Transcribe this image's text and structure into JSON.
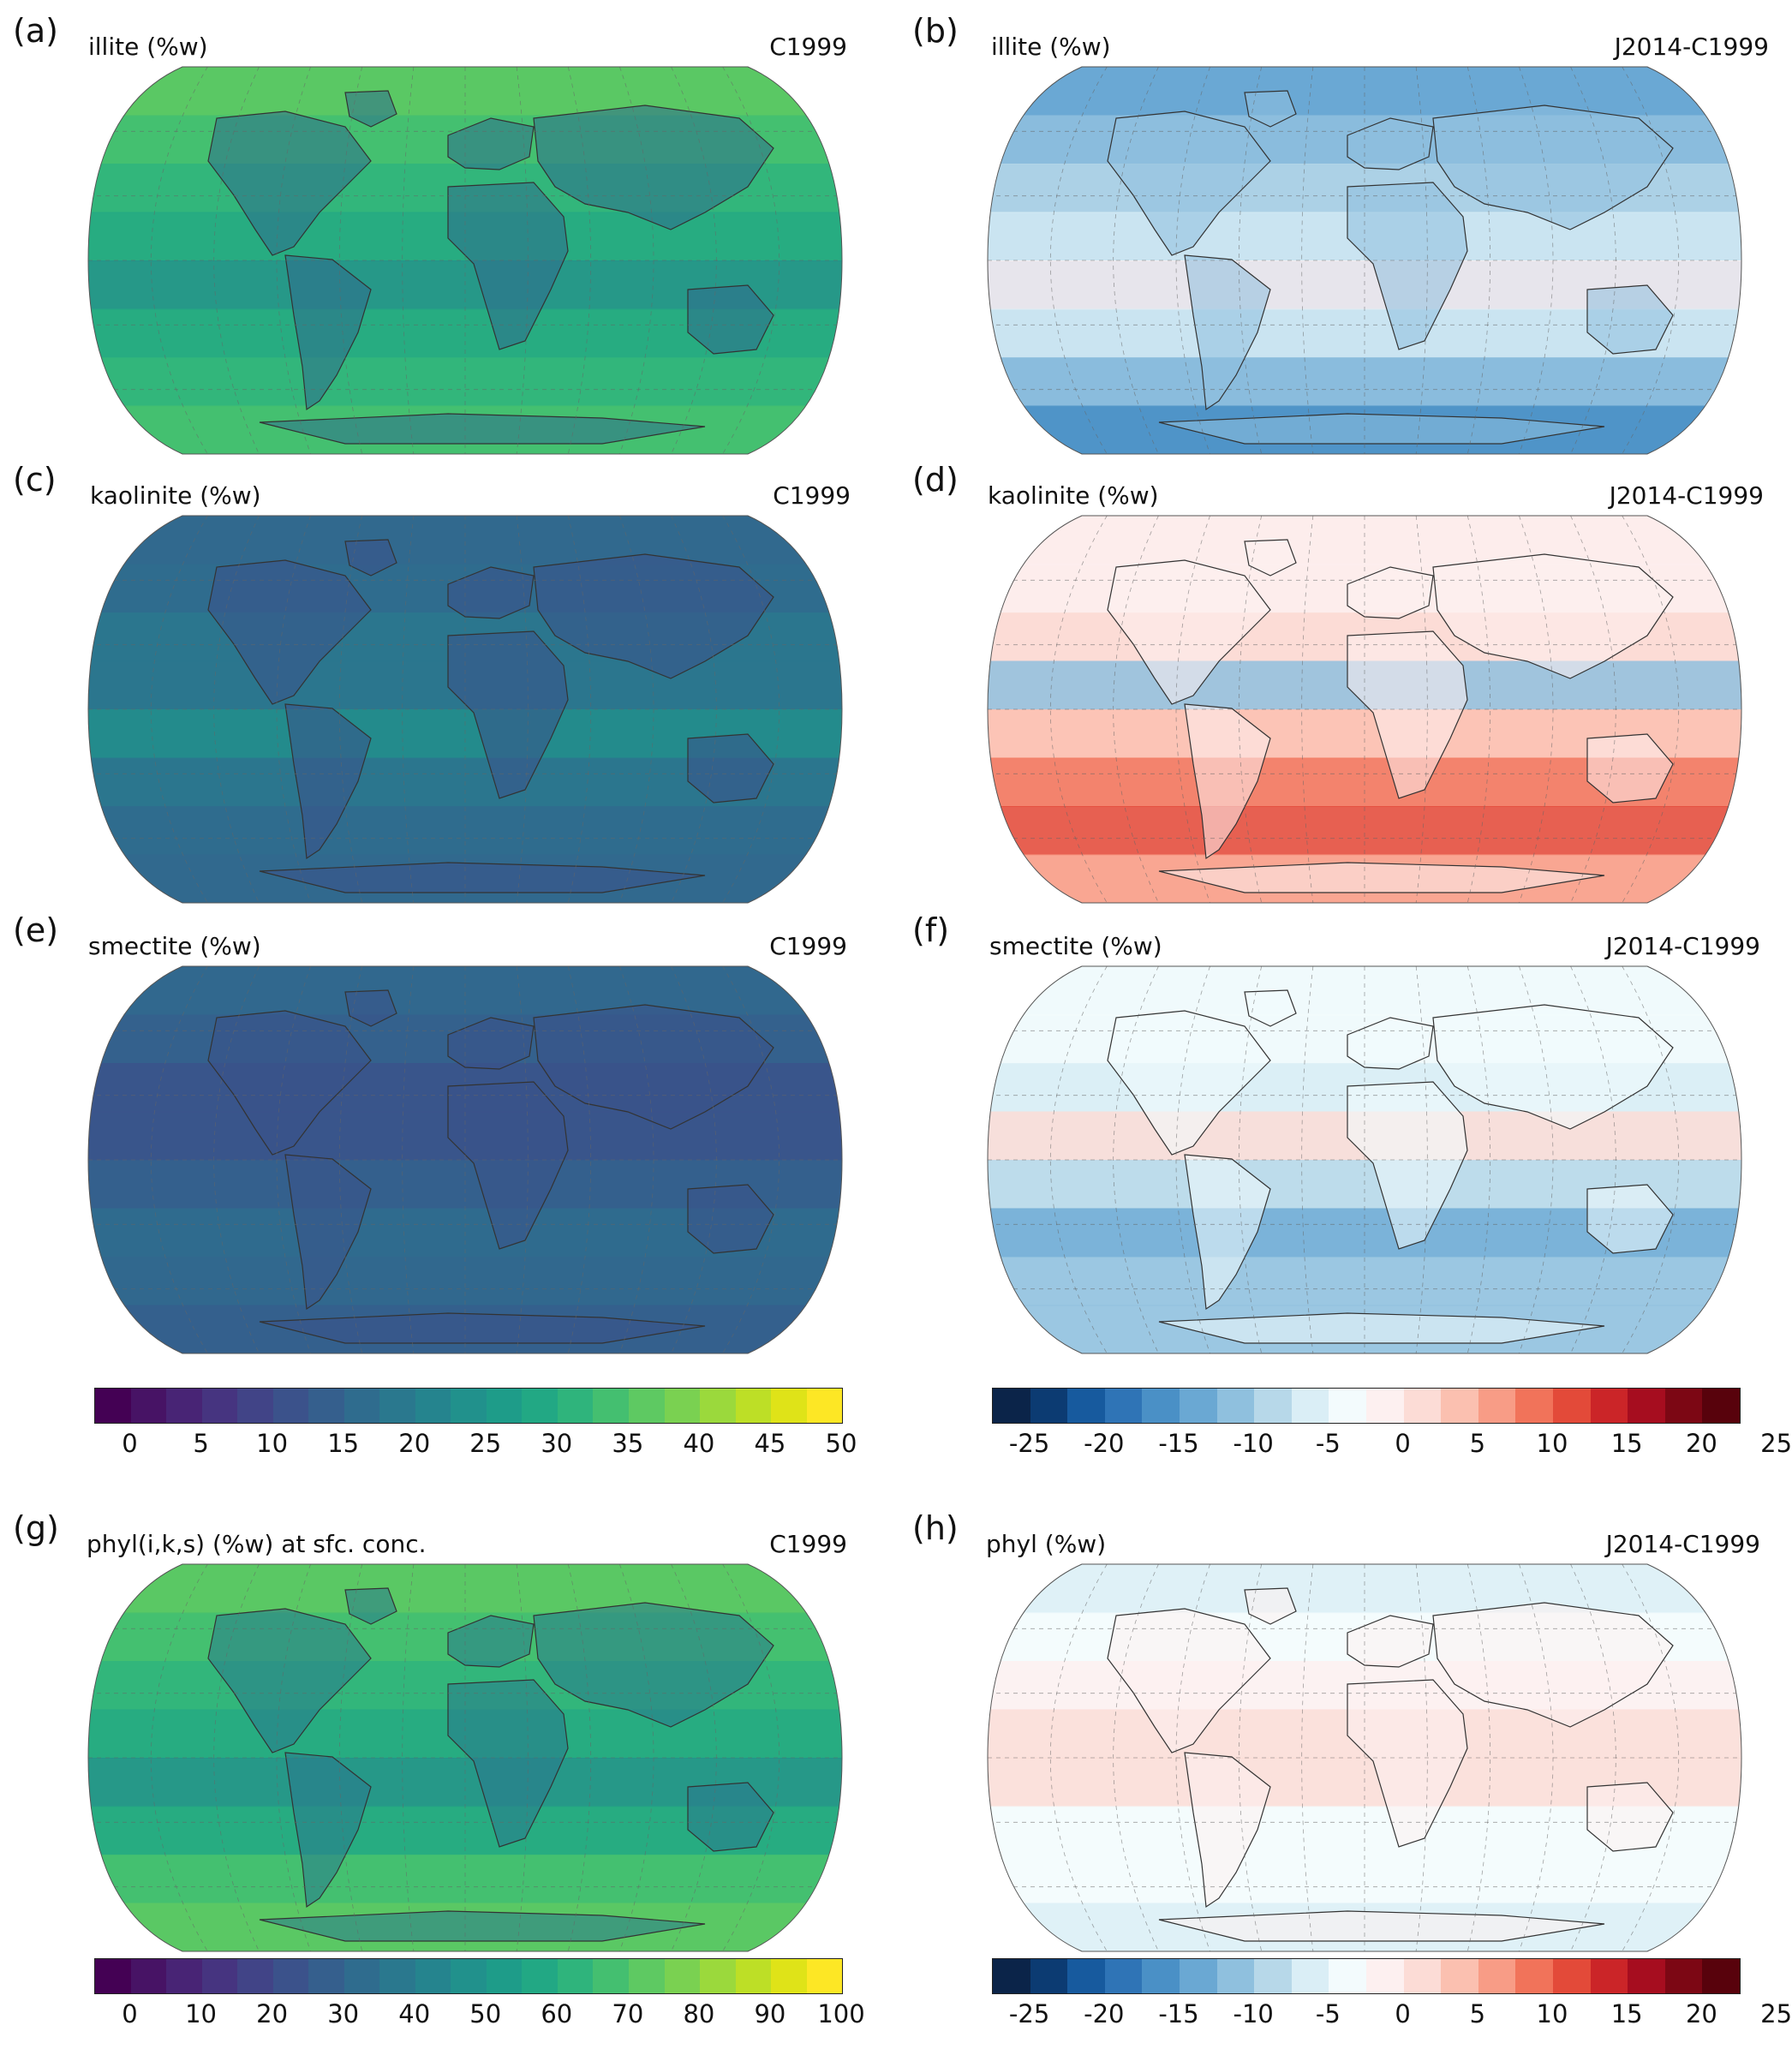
{
  "panels": [
    {
      "id": "a",
      "letter": "(a)",
      "var": "illite (%w)",
      "exp": "C1999"
    },
    {
      "id": "b",
      "letter": "(b)",
      "var": "illite (%w)",
      "exp": "J2014-C1999"
    },
    {
      "id": "c",
      "letter": "(c)",
      "var": "kaolinite (%w)",
      "exp": "C1999"
    },
    {
      "id": "d",
      "letter": "(d)",
      "var": "kaolinite (%w)",
      "exp": "J2014-C1999"
    },
    {
      "id": "e",
      "letter": "(e)",
      "var": "smectite (%w)",
      "exp": "C1999"
    },
    {
      "id": "f",
      "letter": "(f)",
      "var": "smectite (%w)",
      "exp": "J2014-C1999"
    },
    {
      "id": "g",
      "letter": "(g)",
      "var": "phyl(i,k,s) (%w) at sfc. conc.",
      "exp": "C1999"
    },
    {
      "id": "h",
      "letter": "(h)",
      "var": "phyl (%w)",
      "exp": "J2014-C1999"
    }
  ],
  "colorbars": [
    {
      "id": "abs-1",
      "ticks": [
        "0",
        "5",
        "10",
        "15",
        "20",
        "25",
        "30",
        "35",
        "40",
        "45",
        "50"
      ]
    },
    {
      "id": "diff-1",
      "ticks": [
        "-25",
        "-20",
        "-15",
        "-10",
        "-5",
        "0",
        "5",
        "10",
        "15",
        "20",
        "25"
      ]
    },
    {
      "id": "abs-2",
      "ticks": [
        "0",
        "10",
        "20",
        "30",
        "40",
        "50",
        "60",
        "70",
        "80",
        "90",
        "100"
      ]
    },
    {
      "id": "diff-2",
      "ticks": [
        "-25",
        "-20",
        "-15",
        "-10",
        "-5",
        "0",
        "5",
        "10",
        "15",
        "20",
        "25"
      ]
    }
  ],
  "colors": {
    "viridis": [
      "#440154",
      "#471365",
      "#482475",
      "#463480",
      "#414487",
      "#3b528b",
      "#355f8d",
      "#2f6c8e",
      "#2a788e",
      "#25848e",
      "#21918c",
      "#1e9c89",
      "#22a884",
      "#2fb47c",
      "#44bf70",
      "#5ec962",
      "#7ad151",
      "#9bd93c",
      "#bddf26",
      "#dfe318",
      "#fde725"
    ],
    "rdbu": [
      "#0b2449",
      "#0c3b72",
      "#175a9e",
      "#2f74b6",
      "#4a90c6",
      "#6aa8d3",
      "#8fc0de",
      "#b7d8e9",
      "#daeef6",
      "#f3fbfd",
      "#fdf0f0",
      "#fcdcd6",
      "#fbc0b0",
      "#f89c86",
      "#f1735a",
      "#e34a39",
      "#cb2528",
      "#a60d1f",
      "#7c0714",
      "#58020c"
    ],
    "ocean_abs": [
      "#31688e",
      "#2a788e",
      "#21918c",
      "#1e9c89",
      "#22a884",
      "#2fb47c",
      "#44bf70",
      "#5ec962"
    ],
    "ocean_diff": [
      "#daeef6",
      "#b7d8e9",
      "#8fc0de",
      "#6aa8d3",
      "#fdf0f0",
      "#fcdcd6",
      "#f89c86",
      "#e34a39",
      "#a60d1f"
    ]
  },
  "maps": {
    "a": {
      "ocean": "#44bf70",
      "land": "#2f6c8e",
      "bands": [
        "#5ec962",
        "#44bf70",
        "#2fb47c",
        "#22a884",
        "#21918c",
        "#22a884",
        "#2fb47c",
        "#44bf70"
      ]
    },
    "b": {
      "ocean": "#6aa8d3",
      "land": "#8fc0de",
      "bands": [
        "#6aa8d3",
        "#8fc0de",
        "#b7d8e9",
        "#daeef6",
        "#fdf0f0",
        "#daeef6",
        "#8fc0de",
        "#4a90c6"
      ]
    },
    "c": {
      "ocean": "#2f6c8e",
      "land": "#3b528b",
      "bands": [
        "#31688e",
        "#2f6c8e",
        "#2a788e",
        "#2a788e",
        "#21918c",
        "#2a788e",
        "#2f6c8e",
        "#31688e"
      ]
    },
    "d": {
      "ocean": "#fcdcd6",
      "land": "#fdf0f0",
      "bands": [
        "#fdf0f0",
        "#fdf0f0",
        "#fcdcd6",
        "#8fc0de",
        "#fbc0b0",
        "#f1735a",
        "#e34a39",
        "#f89c86"
      ]
    },
    "e": {
      "ocean": "#31688e",
      "land": "#3b528b",
      "bands": [
        "#31688e",
        "#35608d",
        "#3b528b",
        "#3b528b",
        "#355f8d",
        "#2f6c8e",
        "#31688e",
        "#355f8d"
      ]
    },
    "f": {
      "ocean": "#daeef6",
      "land": "#f3fbfd",
      "bands": [
        "#f3fbfd",
        "#f3fbfd",
        "#daeef6",
        "#fcdcd6",
        "#b7d8e9",
        "#6aa8d3",
        "#8fc0de",
        "#8fc0de"
      ]
    },
    "g": {
      "ocean": "#44bf70",
      "land": "#2a788e",
      "bands": [
        "#5ec962",
        "#44bf70",
        "#2fb47c",
        "#22a884",
        "#21918c",
        "#22a884",
        "#44bf70",
        "#5ec962"
      ]
    },
    "h": {
      "ocean": "#f3fbfd",
      "land": "#fdf0f0",
      "bands": [
        "#daeef6",
        "#f3fbfd",
        "#fdf0f0",
        "#fcdcd6",
        "#fcdcd6",
        "#f3fbfd",
        "#f3fbfd",
        "#daeef6"
      ]
    }
  }
}
